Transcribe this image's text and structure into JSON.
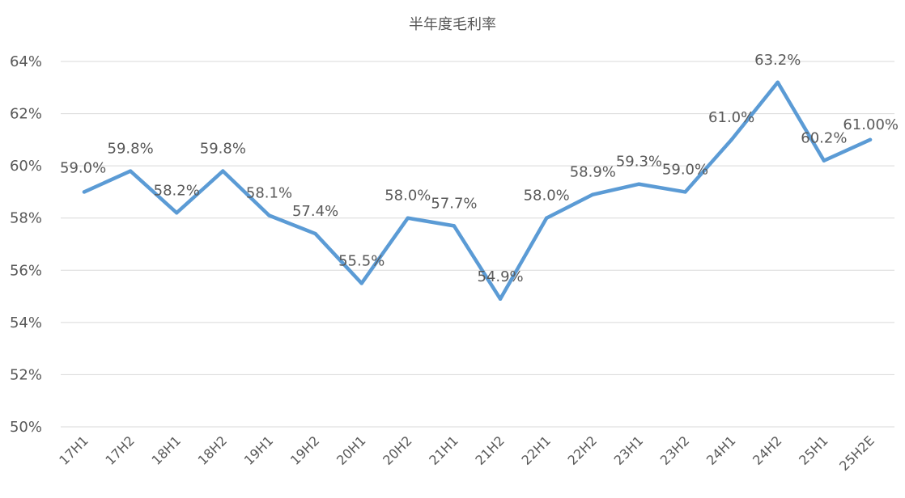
{
  "chart_data": {
    "type": "line",
    "title": "半年度毛利率",
    "categories": [
      "17H1",
      "17H2",
      "18H1",
      "18H2",
      "19H1",
      "19H2",
      "20H1",
      "20H2",
      "21H1",
      "21H2",
      "22H1",
      "22H2",
      "23H1",
      "23H2",
      "24H1",
      "24H2",
      "25H1",
      "25H2E"
    ],
    "series": [
      {
        "values": [
          59.0,
          59.8,
          58.2,
          59.8,
          58.1,
          57.4,
          55.5,
          58.0,
          57.7,
          54.9,
          58.0,
          58.9,
          59.3,
          59.0,
          61.0,
          63.2,
          60.2,
          61.0
        ],
        "labels": [
          "59.0%",
          "59.8%",
          "58.2%",
          "59.8%",
          "58.1%",
          "57.4%",
          "55.5%",
          "58.0%",
          "57.7%",
          "54.9%",
          "58.0%",
          "58.9%",
          "59.3%",
          "59.0%",
          "61.0%",
          "63.2%",
          "60.2%",
          "61.00%"
        ],
        "color": "#5B9BD5"
      }
    ],
    "ylim": [
      50,
      64
    ],
    "yticks": [
      "50%",
      "52%",
      "54%",
      "56%",
      "58%",
      "60%",
      "62%",
      "64%"
    ],
    "grid": true,
    "legend": "none"
  },
  "colors": {
    "line": "#5B9BD5",
    "grid": "#D9D9D9",
    "text": "#595959"
  }
}
